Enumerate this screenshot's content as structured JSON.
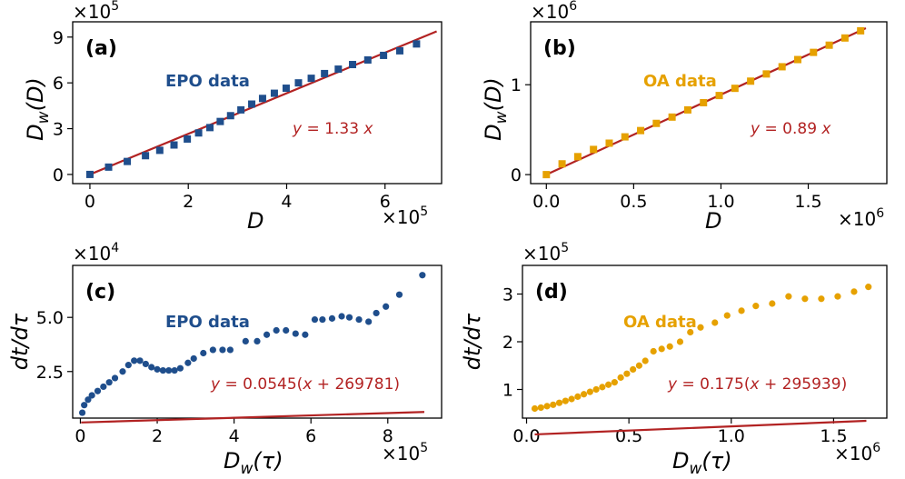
{
  "colors": {
    "epo": "#1f4e8c",
    "oa": "#e6a100",
    "fit": "#b22222",
    "axis": "#000000"
  },
  "chart_data": [
    {
      "id": "a",
      "panel_label": "(a)",
      "type": "scatter",
      "marker": "square",
      "series_name": "EPO data",
      "series_color": "#1f4e8c",
      "fit_label": "y = 1.33 x",
      "fit": {
        "slope": 1.33,
        "shift": 0
      },
      "xlabel": "D",
      "ylabel": "D_w(D)",
      "x_multiplier": "×10^5",
      "y_multiplier": "×10^5",
      "xlim": [
        -0.35,
        7.15
      ],
      "ylim": [
        -0.6,
        10.0
      ],
      "fit_x": [
        0,
        7.05
      ],
      "x_ticks": [
        0,
        2,
        4,
        6
      ],
      "x_tick_labels": [
        "0",
        "2",
        "4",
        "6"
      ],
      "y_ticks": [
        0,
        3,
        6,
        9
      ],
      "y_tick_labels": [
        "0",
        "3",
        "6",
        "9"
      ],
      "x": [
        0.0,
        0.38,
        0.76,
        1.13,
        1.42,
        1.71,
        1.98,
        2.21,
        2.44,
        2.65,
        2.86,
        3.07,
        3.29,
        3.51,
        3.75,
        3.99,
        4.24,
        4.5,
        4.77,
        5.05,
        5.34,
        5.65,
        5.97,
        6.3,
        6.64
      ],
      "y": [
        0.0,
        0.48,
        0.85,
        1.23,
        1.58,
        1.93,
        2.32,
        2.72,
        3.07,
        3.47,
        3.85,
        4.23,
        4.61,
        4.98,
        5.32,
        5.65,
        6.0,
        6.3,
        6.61,
        6.9,
        7.2,
        7.5,
        7.8,
        8.1,
        8.55
      ]
    },
    {
      "id": "b",
      "panel_label": "(b)",
      "type": "scatter",
      "marker": "square",
      "series_name": "OA data",
      "series_color": "#e6a100",
      "fit_label": "y = 0.89 x",
      "fit": {
        "slope": 0.89,
        "shift": 0
      },
      "xlabel": "D",
      "ylabel": "D_w(D)",
      "x_multiplier": "×10^6",
      "y_multiplier": "×10^6",
      "xlim": [
        -0.09,
        1.95
      ],
      "ylim": [
        -0.1,
        1.7
      ],
      "fit_x": [
        0,
        1.83
      ],
      "x_ticks": [
        0,
        0.5,
        1.0,
        1.5
      ],
      "x_tick_labels": [
        "0.0",
        "0.5",
        "1.0",
        "1.5"
      ],
      "y_ticks": [
        0,
        1
      ],
      "y_tick_labels": [
        "0",
        "1"
      ],
      "x": [
        0.0,
        0.09,
        0.18,
        0.27,
        0.36,
        0.45,
        0.54,
        0.63,
        0.72,
        0.81,
        0.9,
        0.99,
        1.08,
        1.17,
        1.26,
        1.35,
        1.44,
        1.53,
        1.62,
        1.71,
        1.8
      ],
      "y": [
        0.0,
        0.12,
        0.2,
        0.28,
        0.35,
        0.42,
        0.49,
        0.57,
        0.64,
        0.72,
        0.8,
        0.88,
        0.96,
        1.04,
        1.12,
        1.2,
        1.28,
        1.36,
        1.44,
        1.52,
        1.6
      ]
    },
    {
      "id": "c",
      "panel_label": "(c)",
      "type": "scatter",
      "marker": "circle",
      "series_name": "EPO data",
      "series_color": "#1f4e8c",
      "fit_label": "y = 0.0545(x + 269781)",
      "fit": {
        "slope": 0.0545,
        "shift": 2.69781
      },
      "xlabel": "D_w(τ)",
      "ylabel": "dt/dτ",
      "x_multiplier": "×10^5",
      "y_multiplier": "×10^4",
      "xlim": [
        -0.2,
        9.4
      ],
      "ylim": [
        0.35,
        7.4
      ],
      "fit_x": [
        0.02,
        8.95
      ],
      "x_ticks": [
        0,
        2,
        4,
        6,
        8
      ],
      "x_tick_labels": [
        "0",
        "2",
        "4",
        "6",
        "8"
      ],
      "y_ticks": [
        2.5,
        5.0
      ],
      "y_tick_labels": [
        "2.5",
        "5.0"
      ],
      "x": [
        0.05,
        0.1,
        0.2,
        0.3,
        0.45,
        0.6,
        0.75,
        0.9,
        1.1,
        1.25,
        1.4,
        1.55,
        1.7,
        1.85,
        2.0,
        2.15,
        2.3,
        2.45,
        2.6,
        2.8,
        2.95,
        3.2,
        3.45,
        3.7,
        3.9,
        4.3,
        4.6,
        4.85,
        5.1,
        5.35,
        5.6,
        5.85,
        6.1,
        6.3,
        6.55,
        6.8,
        7.0,
        7.25,
        7.5,
        7.7,
        7.95,
        8.3,
        8.9
      ],
      "y": [
        0.6,
        0.95,
        1.2,
        1.4,
        1.6,
        1.8,
        2.0,
        2.2,
        2.5,
        2.8,
        3.0,
        3.0,
        2.85,
        2.7,
        2.6,
        2.55,
        2.55,
        2.55,
        2.65,
        2.9,
        3.1,
        3.35,
        3.5,
        3.5,
        3.5,
        3.9,
        3.9,
        4.2,
        4.4,
        4.4,
        4.25,
        4.2,
        4.9,
        4.9,
        4.95,
        5.05,
        5.0,
        4.9,
        4.8,
        5.2,
        5.5,
        6.05,
        6.95
      ]
    },
    {
      "id": "d",
      "panel_label": "(d)",
      "type": "scatter",
      "marker": "circle",
      "series_name": "OA data",
      "series_color": "#e6a100",
      "fit_label": "y = 0.175(x + 295939)",
      "fit": {
        "slope": 0.175,
        "shift": 0.295939
      },
      "xlabel": "D_w(τ)",
      "ylabel": "dt/dτ",
      "x_multiplier": "×10^6",
      "y_multiplier": "×10^5",
      "xlim": [
        -0.02,
        1.76
      ],
      "ylim": [
        0.4,
        3.6
      ],
      "fit_x": [
        0.04,
        1.66
      ],
      "x_ticks": [
        0,
        0.5,
        1.0,
        1.5
      ],
      "x_tick_labels": [
        "0.0",
        "0.5",
        "1.0",
        "1.5"
      ],
      "y_ticks": [
        1,
        2,
        3
      ],
      "y_tick_labels": [
        "1",
        "2",
        "3"
      ],
      "x": [
        0.04,
        0.07,
        0.1,
        0.13,
        0.16,
        0.19,
        0.22,
        0.25,
        0.28,
        0.31,
        0.34,
        0.37,
        0.4,
        0.43,
        0.46,
        0.49,
        0.52,
        0.55,
        0.58,
        0.62,
        0.66,
        0.7,
        0.75,
        0.8,
        0.85,
        0.92,
        0.98,
        1.05,
        1.12,
        1.2,
        1.28,
        1.36,
        1.44,
        1.52,
        1.6,
        1.67
      ],
      "y": [
        0.6,
        0.62,
        0.65,
        0.68,
        0.72,
        0.76,
        0.8,
        0.85,
        0.9,
        0.95,
        1.0,
        1.05,
        1.1,
        1.15,
        1.25,
        1.33,
        1.42,
        1.5,
        1.6,
        1.8,
        1.85,
        1.9,
        2.0,
        2.2,
        2.3,
        2.4,
        2.55,
        2.65,
        2.75,
        2.8,
        2.95,
        2.9,
        2.9,
        2.95,
        3.05,
        3.15
      ]
    }
  ]
}
